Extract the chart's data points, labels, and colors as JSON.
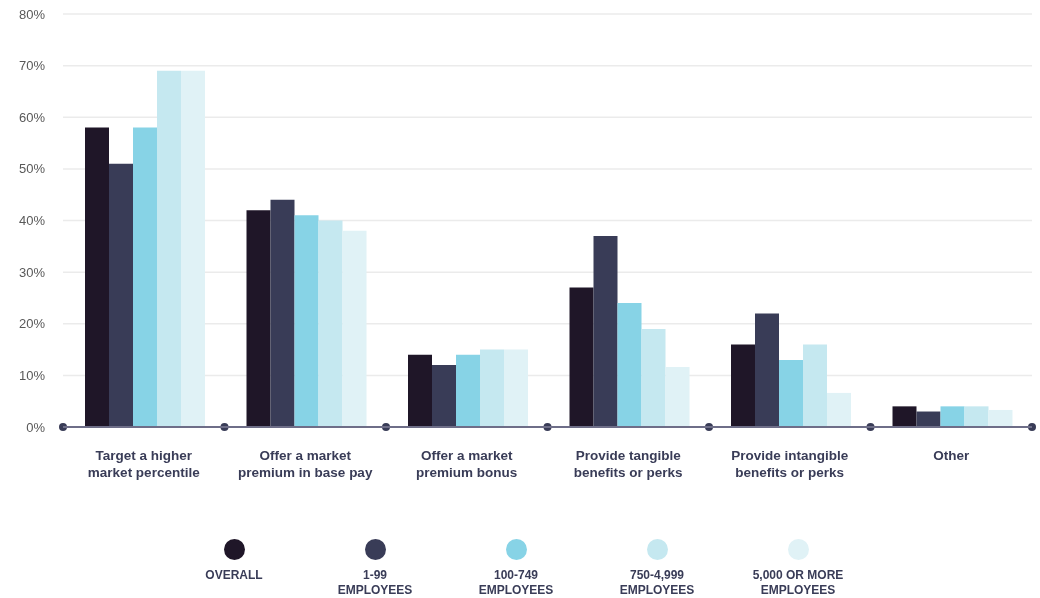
{
  "chart_data": {
    "type": "bar",
    "categories": [
      "Target a higher market percentile",
      "Offer a market premium in base pay",
      "Offer a market premium bonus",
      "Provide tangible benefits or perks",
      "Provide intangible benefits or perks",
      "Other"
    ],
    "series": [
      {
        "name": "OVERALL",
        "color": "#1f1628",
        "values": [
          58,
          42,
          14,
          27,
          16,
          4
        ]
      },
      {
        "name": "1-99 EMPLOYEES",
        "color": "#393c57",
        "values": [
          51,
          44,
          12,
          37,
          22,
          3
        ]
      },
      {
        "name": "100-749 EMPLOYEES",
        "color": "#87d3e6",
        "values": [
          58,
          41,
          14,
          24,
          13,
          4
        ]
      },
      {
        "name": "750-4,999 EMPLOYEES",
        "color": "#c5e8f0",
        "values": [
          69,
          40,
          15,
          19,
          16,
          4
        ]
      },
      {
        "name": "5,000 OR MORE EMPLOYEES",
        "color": "#e0f2f6",
        "values": [
          69,
          38,
          15,
          11.6,
          6.6,
          3.3
        ]
      }
    ],
    "ylim": [
      0,
      80
    ],
    "yticks": [
      {
        "value": 0,
        "label": "0%"
      },
      {
        "value": 10,
        "label": "10%"
      },
      {
        "value": 20,
        "label": "20%"
      },
      {
        "value": 30,
        "label": "30%"
      },
      {
        "value": 40,
        "label": "40%"
      },
      {
        "value": 50,
        "label": "50%"
      },
      {
        "value": 60,
        "label": "60%"
      },
      {
        "value": 70,
        "label": "70%"
      },
      {
        "value": 80,
        "label": "80%"
      }
    ],
    "grid": "y",
    "legend": "bottom"
  }
}
